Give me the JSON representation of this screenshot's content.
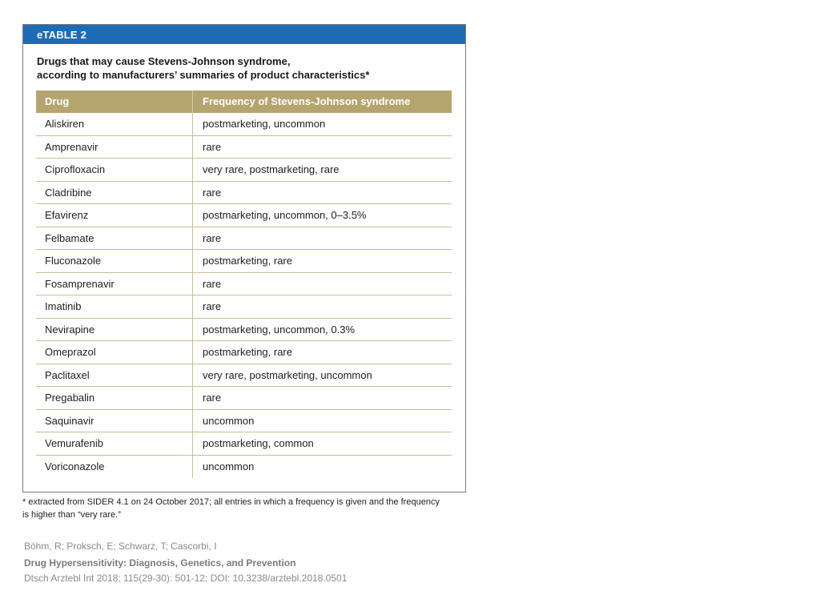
{
  "table": {
    "label": "eTABLE 2",
    "title_line1": "Drugs that may cause Stevens-Johnson syndrome,",
    "title_line2": "according to manufacturers’ summaries of product characteristics*",
    "columns": [
      "Drug",
      "Frequency of Stevens-Johnson syndrome"
    ],
    "rows": [
      {
        "drug": "Aliskiren",
        "frequency": "postmarketing, uncommon"
      },
      {
        "drug": "Amprenavir",
        "frequency": "rare"
      },
      {
        "drug": "Ciprofloxacin",
        "frequency": "very rare, postmarketing, rare"
      },
      {
        "drug": "Cladribine",
        "frequency": "rare"
      },
      {
        "drug": "Efavirenz",
        "frequency": "postmarketing, uncommon, 0–3.5%"
      },
      {
        "drug": "Felbamate",
        "frequency": "rare"
      },
      {
        "drug": "Fluconazole",
        "frequency": "postmarketing, rare"
      },
      {
        "drug": "Fosamprenavir",
        "frequency": "rare"
      },
      {
        "drug": "Imatinib",
        "frequency": "rare"
      },
      {
        "drug": "Nevirapine",
        "frequency": "postmarketing, uncommon, 0.3%"
      },
      {
        "drug": "Omeprazol",
        "frequency": "postmarketing, rare"
      },
      {
        "drug": "Paclitaxel",
        "frequency": "very rare, postmarketing, uncommon"
      },
      {
        "drug": "Pregabalin",
        "frequency": "rare"
      },
      {
        "drug": "Saquinavir",
        "frequency": "uncommon"
      },
      {
        "drug": "Vemurafenib",
        "frequency": "postmarketing, common"
      },
      {
        "drug": "Voriconazole",
        "frequency": "uncommon"
      }
    ],
    "footnote_line1": "* extracted from SIDER 4.1 on 24 October 2017; all entries in which a frequency is given and the frequency",
    "footnote_line2": "is higher than “very rare.”"
  },
  "citation": {
    "authors": "Böhm, R; Proksch, E; Schwarz, T; Cascorbi, I",
    "title": "Drug Hypersensitivity: Diagnosis, Genetics, and Prevention",
    "source": "Dtsch Arztebl Int 2018; 115(29-30): 501-12; DOI: 10.3238/arztebl.2018.0501"
  },
  "colors": {
    "header_bar": "#1e6cb4",
    "column_header": "#b4a56f",
    "row_rule": "#cbbd8f",
    "frame": "#7d7d7d",
    "citation_text": "#8a8a8a",
    "citation_title": "#7b7b7b"
  }
}
